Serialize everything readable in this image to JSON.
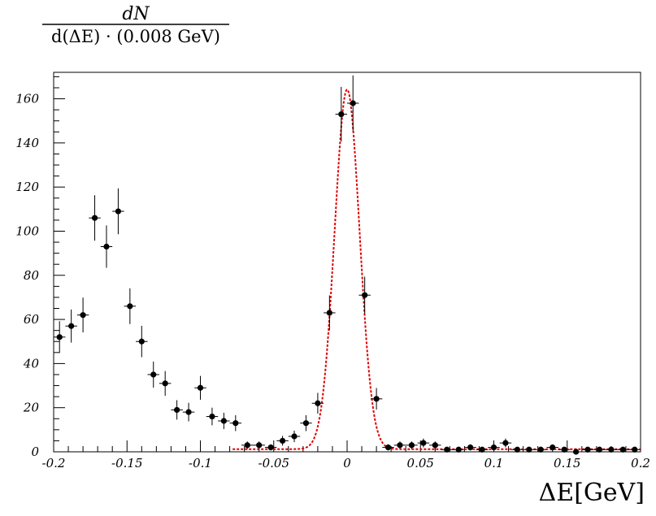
{
  "chart_data": {
    "type": "scatter",
    "ylabel_numerator": "dN",
    "ylabel_denominator": "d(ΔE) · (0.008 GeV)",
    "xlabel": "ΔE[GeV]",
    "xlim": [
      -0.2,
      0.2
    ],
    "ylim": [
      0,
      172
    ],
    "x_ticks": [
      -0.2,
      -0.15,
      -0.1,
      -0.05,
      0,
      0.05,
      0.1,
      0.15,
      0.2
    ],
    "x_tick_labels": [
      "-0.2",
      "-0.15",
      "-0.1",
      "-0.05",
      "0",
      "0.05",
      "0.1",
      "0.15",
      "0.2"
    ],
    "y_ticks": [
      0,
      20,
      40,
      60,
      80,
      100,
      120,
      140,
      160
    ],
    "y_tick_labels": [
      "0",
      "20",
      "40",
      "60",
      "80",
      "100",
      "120",
      "140",
      "160"
    ],
    "grid": false,
    "series": [
      {
        "kind": "points-with-errors",
        "color": "#000000",
        "x": [
          -0.196,
          -0.188,
          -0.18,
          -0.172,
          -0.164,
          -0.156,
          -0.148,
          -0.14,
          -0.132,
          -0.124,
          -0.116,
          -0.108,
          -0.1,
          -0.092,
          -0.084,
          -0.076,
          -0.068,
          -0.06,
          -0.052,
          -0.044,
          -0.036,
          -0.028,
          -0.02,
          -0.012,
          -0.004,
          0.004,
          0.012,
          0.02,
          0.028,
          0.036,
          0.044,
          0.052,
          0.06,
          0.068,
          0.076,
          0.084,
          0.092,
          0.1,
          0.108,
          0.116,
          0.124,
          0.132,
          0.14,
          0.148,
          0.156,
          0.164,
          0.172,
          0.18,
          0.188,
          0.196
        ],
        "y": [
          52,
          57,
          62,
          106,
          93,
          109,
          66,
          50,
          35,
          31,
          19,
          18,
          29,
          16,
          14,
          13,
          3,
          3,
          2,
          5,
          7,
          13,
          22,
          63,
          153,
          158,
          71,
          24,
          2,
          3,
          3,
          4,
          3,
          1,
          1,
          2,
          1,
          2,
          4,
          1,
          1,
          1,
          2,
          1,
          0,
          1,
          1,
          1,
          1,
          1
        ],
        "yerr": [
          7.2,
          7.5,
          7.9,
          10.3,
          9.6,
          10.4,
          8.1,
          7.1,
          5.9,
          5.6,
          4.4,
          4.2,
          5.4,
          4.0,
          3.7,
          3.6,
          1.7,
          1.7,
          1.4,
          2.2,
          2.6,
          3.6,
          4.7,
          7.9,
          12.4,
          12.6,
          8.4,
          4.9,
          1.4,
          1.7,
          1.7,
          2.0,
          1.7,
          1.0,
          1.0,
          1.4,
          1.0,
          1.4,
          2.0,
          1.0,
          1.0,
          1.0,
          1.4,
          1.0,
          0,
          1.0,
          1.0,
          1.0,
          1.0,
          1.0
        ]
      },
      {
        "kind": "fit-curve",
        "color": "#dd0000",
        "style": "dotted",
        "model": "gaussian",
        "amplitude": 163,
        "mean": 0.0,
        "sigma": 0.0085,
        "baseline": 1.2,
        "x_range": [
          -0.078,
          0.2
        ]
      }
    ]
  }
}
